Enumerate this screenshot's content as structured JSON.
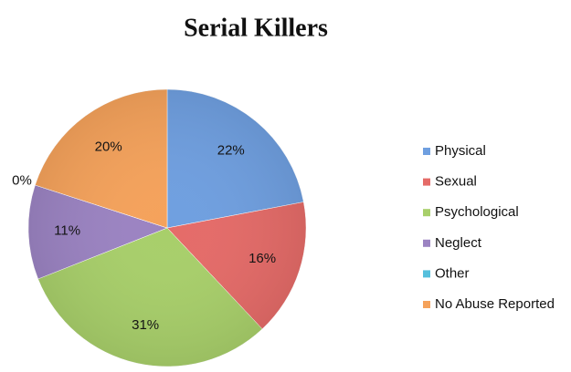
{
  "chart_data": {
    "type": "pie",
    "title": "Serial Killers",
    "categories": [
      "Physical",
      "Sexual",
      "Psychological",
      "Neglect",
      "Other",
      "No Abuse Reported"
    ],
    "values": [
      22,
      16,
      31,
      11,
      0,
      20
    ],
    "value_labels": [
      "22%",
      "16%",
      "31%",
      "11%",
      "0%",
      "20%"
    ],
    "colors": [
      "#6f9fe0",
      "#e56b68",
      "#a8cf6a",
      "#9b83c2",
      "#55bfdc",
      "#f5a25b"
    ],
    "legend": "right"
  }
}
